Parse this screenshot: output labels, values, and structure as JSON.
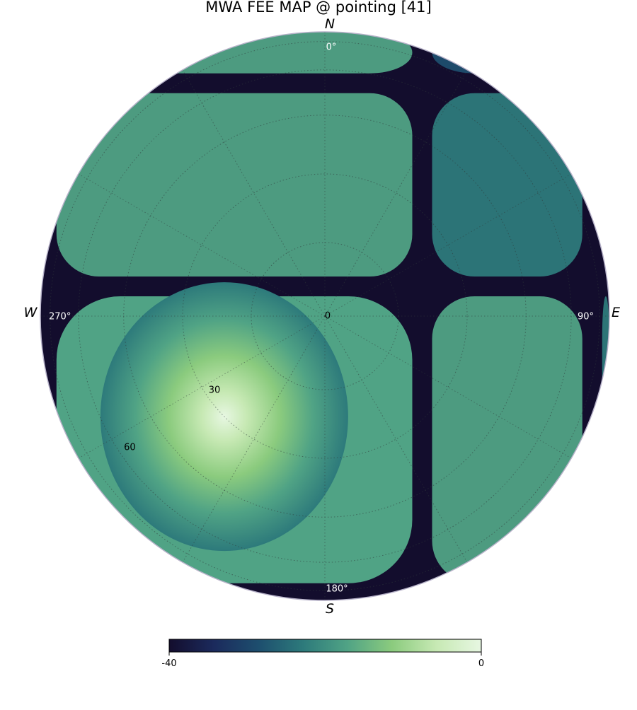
{
  "chart_data": {
    "type": "heatmap",
    "title": "MWA FEE MAP @ pointing [41]",
    "projection": "polar-sky (zenith at centre, horizon at rim)",
    "colormap": "cubehelix-green (dark navy to pale green-white)",
    "colorbar": {
      "min": -40,
      "max": 0,
      "tick_labels": [
        "-40",
        "0"
      ],
      "placement": "bottom"
    },
    "cardinal_labels": {
      "north": "N",
      "east": "E",
      "south": "S",
      "west": "W"
    },
    "azimuth_labels": [
      {
        "az": 0,
        "text": "0°"
      },
      {
        "az": 90,
        "text": "90°"
      },
      {
        "az": 180,
        "text": "180°"
      },
      {
        "az": 270,
        "text": "270°"
      }
    ],
    "zenith_angle_labels": [
      {
        "za": 0,
        "text": "0"
      },
      {
        "za": 30,
        "text": "30"
      },
      {
        "za": 60,
        "text": "60"
      }
    ],
    "grid": true,
    "grid_rings_deg": [
      15,
      30,
      45,
      60,
      75
    ],
    "main_lobe": {
      "az": 225,
      "za": 30,
      "peak_db": 0
    },
    "null_rows": [
      {
        "axis": "horizontal",
        "through_az": 0,
        "offset_za": 6
      },
      {
        "axis": "horizontal",
        "through_az": 0,
        "offset_za": 55
      },
      {
        "axis": "horizontal",
        "through_az": 180,
        "offset_za": 77
      }
    ],
    "null_columns": [
      {
        "axis": "vertical",
        "through_az": 90,
        "offset_za": 20
      },
      {
        "axis": "vertical",
        "through_az": 90,
        "offset_za": 70
      },
      {
        "axis": "vertical",
        "through_az": 270,
        "offset_za": 78
      }
    ],
    "colors": {
      "stops": [
        "#130d2d",
        "#1b2a5c",
        "#1d4e6e",
        "#2d7a7b",
        "#50a385",
        "#8bcb7e",
        "#c7e9b4",
        "#e7f7e2"
      ]
    }
  }
}
